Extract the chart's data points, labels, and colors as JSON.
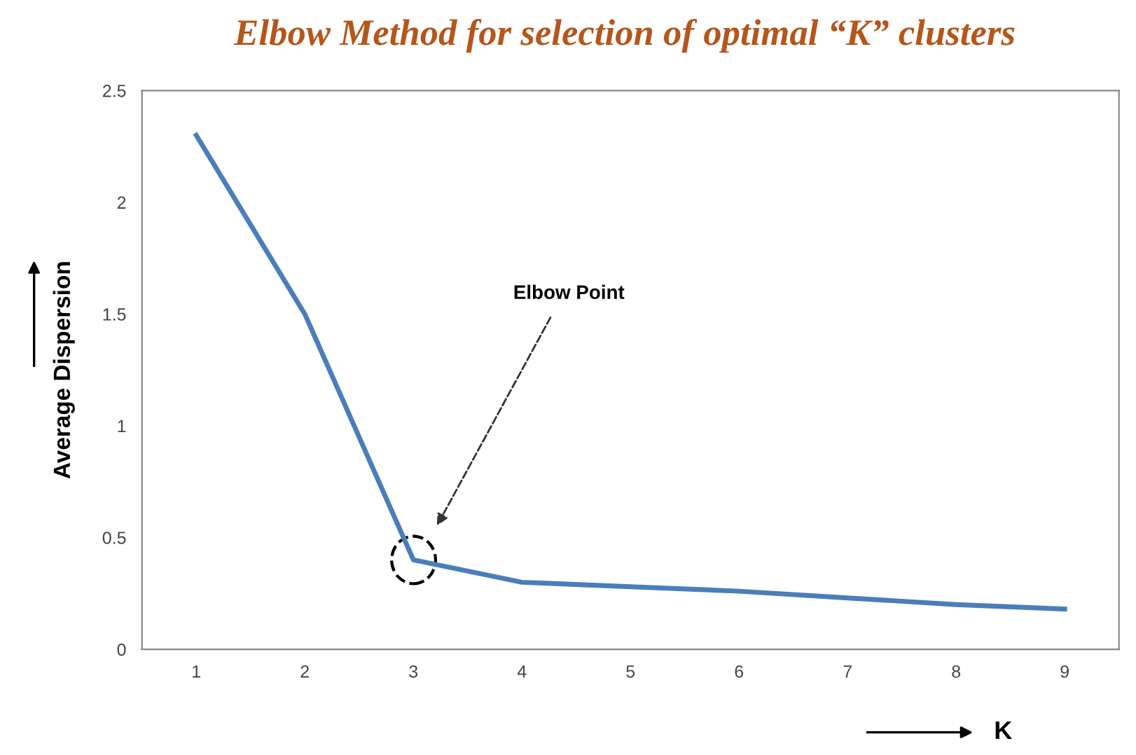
{
  "chart_data": {
    "type": "line",
    "title": "Elbow Method for selection of optimal “K” clusters",
    "xlabel": "K",
    "ylabel": "Average Dispersion",
    "categories": [
      "1",
      "2",
      "3",
      "4",
      "5",
      "6",
      "7",
      "8",
      "9"
    ],
    "series": [
      {
        "color": "#4a7ebb",
        "values": [
          2.3,
          1.5,
          0.4,
          0.3,
          0.28,
          0.26,
          0.23,
          0.2,
          0.18
        ]
      }
    ],
    "ylim": [
      0,
      2.5
    ],
    "yticks": [
      0,
      0.5,
      1,
      1.5,
      2,
      2.5
    ],
    "grid": false,
    "legend": false,
    "marker": "none",
    "line_style": "solid",
    "annotations": [
      "Elbow Point"
    ]
  }
}
